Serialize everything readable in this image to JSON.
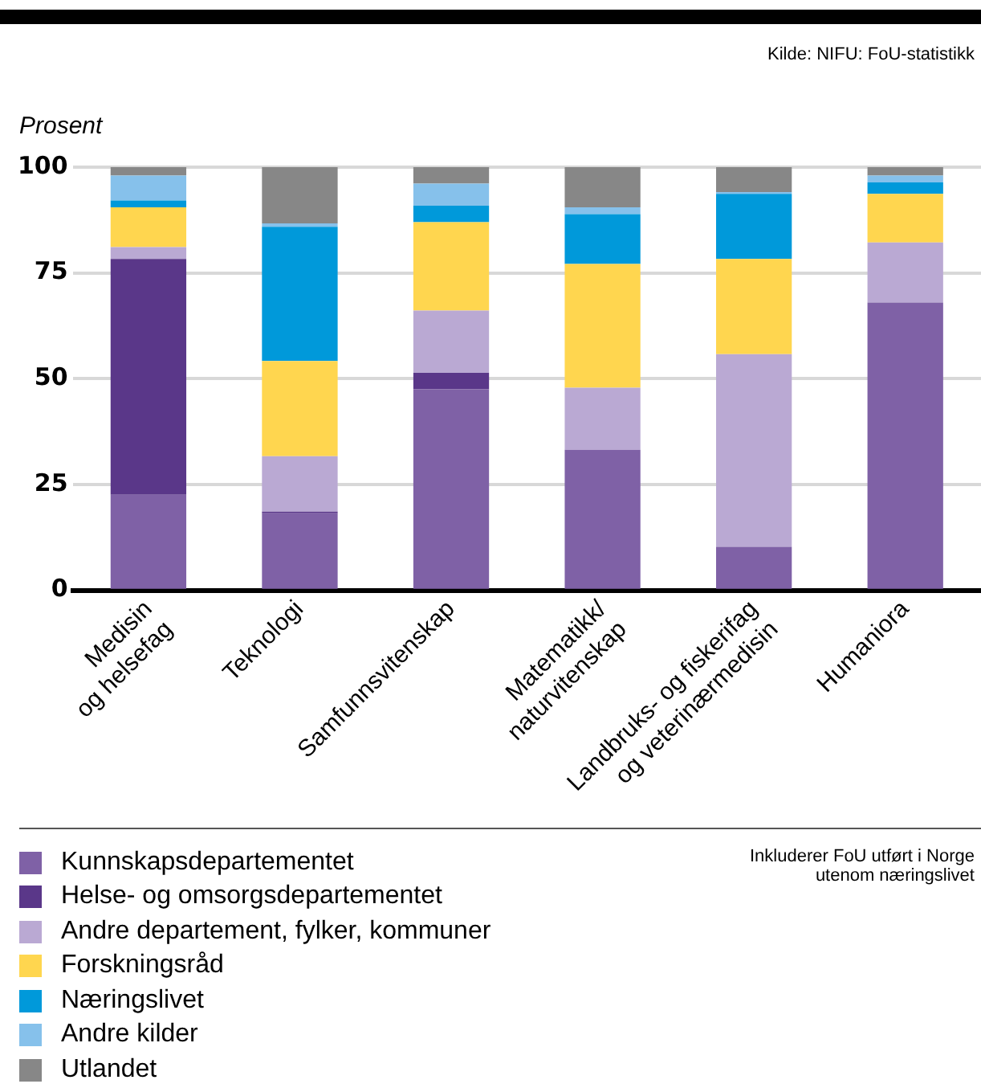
{
  "chart_data": {
    "type": "bar",
    "stacked": true,
    "ylabel": "Prosent",
    "annotations": [
      "Kilde: NIFU: FoU-statistikk",
      "Inkluderer FoU utført i Norge utenom næringslivet"
    ],
    "categories": [
      "Medisin\nog helsefag",
      "Teknologi",
      "Samfunnsvitenskap",
      "Matematikk/\nnaturvitenskap",
      "Landbruks- og fiskerifag\nog veterinærmedisin",
      "Humaniora"
    ],
    "series": [
      {
        "name": "Kunnskapsdepartementet",
        "color": "#7f61a6",
        "values": [
          22.6,
          18.2,
          47.5,
          33.2,
          10.3,
          68.0
        ]
      },
      {
        "name": "Helse- og omsorgsdepartementet",
        "color": "#5a3789",
        "values": [
          55.7,
          0.4,
          3.9,
          0,
          0,
          0
        ]
      },
      {
        "name": "Andre departement, fylker, kommuner",
        "color": "#baa9d3",
        "values": [
          2.8,
          13.1,
          14.7,
          14.7,
          45.5,
          14.2
        ]
      },
      {
        "name": "Forskningsråd",
        "color": "#ffd64f",
        "values": [
          9.4,
          22.5,
          20.9,
          29.2,
          22.5,
          11.5
        ]
      },
      {
        "name": "Næringslivet",
        "color": "#0099da",
        "values": [
          1.6,
          31.7,
          3.9,
          11.8,
          15.4,
          2.7
        ]
      },
      {
        "name": "Andre kilder",
        "color": "#86c1eb",
        "values": [
          5.9,
          0.8,
          5.2,
          1.6,
          0.4,
          1.6
        ]
      },
      {
        "name": "Utlandet",
        "color": "#878787",
        "values": [
          2.0,
          13.3,
          3.9,
          9.5,
          5.9,
          2.0
        ]
      }
    ],
    "ylim": [
      0,
      100
    ],
    "yticks": [
      0,
      25,
      50,
      75,
      100
    ],
    "grid": "y",
    "legend": "bottom left"
  }
}
